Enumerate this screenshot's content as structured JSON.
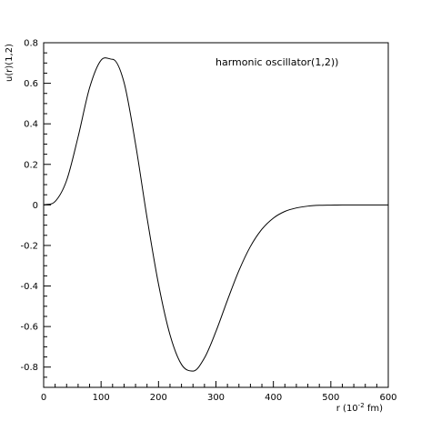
{
  "chart_data": {
    "type": "line",
    "title": "",
    "annotation": "harmonic oscillator(1,2))",
    "xlabel_main": "r (10",
    "xlabel_sup": "-2",
    "xlabel_end": " fm)",
    "ylabel": "u(r)(1,2)",
    "xlim": [
      0,
      600
    ],
    "ylim": [
      -0.9,
      0.8
    ],
    "x_ticks": [
      0,
      100,
      200,
      300,
      400,
      500,
      600
    ],
    "x_tick_labels": [
      "0",
      "100",
      "200",
      "300",
      "400",
      "500",
      "600"
    ],
    "y_ticks": [
      -0.8,
      -0.6,
      -0.4,
      -0.2,
      0,
      0.2,
      0.4,
      0.6,
      0.8
    ],
    "y_tick_labels": [
      "-0.8",
      "-0.6",
      "-0.4",
      "-0.2",
      "0",
      "0.2",
      "0.4",
      "0.6",
      "0.8"
    ],
    "grid": false,
    "legend": "none",
    "series": [
      {
        "color": "#000000",
        "x": [
          0,
          20,
          40,
          60,
          80,
          100,
          120,
          140,
          160,
          180,
          200,
          220,
          240,
          260,
          280,
          300,
          320,
          340,
          360,
          380,
          400,
          420,
          440,
          460,
          480,
          500,
          520,
          540,
          560,
          580,
          600
        ],
        "y": [
          0,
          0.017,
          0.121,
          0.336,
          0.578,
          0.714,
          0.718,
          0.604,
          0.3,
          -0.063,
          -0.391,
          -0.641,
          -0.787,
          -0.82,
          -0.755,
          -0.624,
          -0.47,
          -0.324,
          -0.205,
          -0.12,
          -0.065,
          -0.032,
          -0.015,
          -0.006,
          -0.002,
          -0.001,
          0,
          0,
          0,
          0,
          0
        ]
      }
    ]
  }
}
